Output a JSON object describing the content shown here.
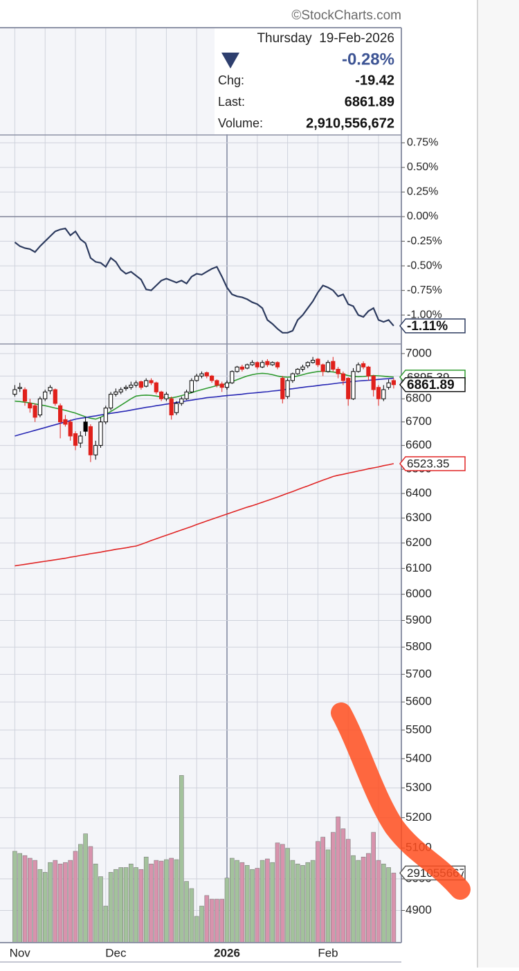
{
  "info": {
    "watermark": "©StockCharts.com",
    "date": "Thursday  19-Feb-2026",
    "change_pct": "-0.28%",
    "chg_label": "Chg:",
    "chg": "-19.42",
    "last_label": "Last:",
    "last": "6861.89",
    "volume_label": "Volume:",
    "volume": "2,910,556,672",
    "arrow_color": "#2e3f6e"
  },
  "chart_data": [
    {
      "type": "line",
      "color": "#2c3a5e",
      "ylim": [
        -1.28,
        0.83
      ],
      "grid": true,
      "yticks": [
        {
          "value": 0.75,
          "label": "0.75%"
        },
        {
          "value": 0.5,
          "label": "0.50%"
        },
        {
          "value": 0.25,
          "label": "0.25%"
        },
        {
          "value": 0,
          "label": "0.00%"
        },
        {
          "value": -0.25,
          "label": "-0.25%"
        },
        {
          "value": -0.5,
          "label": "-0.50%"
        },
        {
          "value": -0.75,
          "label": "-0.75%"
        },
        {
          "value": -1,
          "label": "-1.00%"
        }
      ],
      "values": [
        -0.26,
        -0.3,
        -0.32,
        -0.33,
        -0.36,
        -0.3,
        -0.25,
        -0.2,
        -0.15,
        -0.13,
        -0.12,
        -0.19,
        -0.15,
        -0.23,
        -0.27,
        -0.42,
        -0.46,
        -0.47,
        -0.51,
        -0.42,
        -0.46,
        -0.54,
        -0.58,
        -0.56,
        -0.6,
        -0.64,
        -0.74,
        -0.75,
        -0.7,
        -0.65,
        -0.63,
        -0.65,
        -0.67,
        -0.65,
        -0.68,
        -0.61,
        -0.58,
        -0.59,
        -0.56,
        -0.53,
        -0.51,
        -0.61,
        -0.72,
        -0.79,
        -0.81,
        -0.82,
        -0.84,
        -0.87,
        -0.89,
        -0.93,
        -1.05,
        -1.09,
        -1.14,
        -1.18,
        -1.18,
        -1.16,
        -1.05,
        -1.0,
        -0.93,
        -0.86,
        -0.77,
        -0.7,
        -0.72,
        -0.75,
        -0.81,
        -0.79,
        -0.89,
        -0.91,
        -1.0,
        -1.02,
        -0.96,
        -0.93,
        -1.05,
        -1.07,
        -1.05,
        -1.11
      ],
      "value_labels": [
        null,
        null,
        null,
        null,
        null,
        null,
        null,
        null,
        null,
        null,
        null,
        null,
        null,
        null,
        null,
        null,
        null,
        null,
        null,
        null,
        null,
        null,
        null,
        null,
        null,
        null,
        null,
        null,
        null,
        null,
        null,
        null,
        null,
        null,
        null,
        null,
        null,
        null,
        null,
        null,
        null,
        null,
        null,
        null,
        null,
        null,
        null,
        null,
        null,
        null,
        null,
        null,
        null,
        null,
        null,
        null,
        null,
        null,
        null,
        null,
        null,
        null,
        null,
        null,
        null,
        null,
        null,
        null,
        null,
        null,
        null,
        null,
        null,
        null,
        null,
        "-1.11%"
      ]
    },
    {
      "type": "candlestick",
      "log_scale": true,
      "grid": true,
      "ylim": [
        4800,
        7040
      ],
      "yticks": [
        7000,
        6900,
        6800,
        6700,
        6600,
        6500,
        6400,
        6300,
        6200,
        6100,
        6000,
        5900,
        5800,
        5700,
        5600,
        5500,
        5400,
        5300,
        5200,
        5100,
        5000,
        4900
      ],
      "up_color": "#000000",
      "down_color": "#e0201b",
      "categories": [
        null,
        "Nov",
        null,
        null,
        null,
        null,
        null,
        null,
        null,
        null,
        null,
        null,
        null,
        null,
        null,
        null,
        null,
        null,
        null,
        null,
        "Dec",
        null,
        null,
        null,
        null,
        null,
        null,
        null,
        null,
        null,
        null,
        null,
        null,
        null,
        null,
        null,
        null,
        null,
        null,
        null,
        null,
        null,
        "2026",
        null,
        null,
        null,
        null,
        null,
        null,
        null,
        null,
        null,
        null,
        null,
        null,
        null,
        null,
        null,
        null,
        null,
        null,
        null,
        "Feb",
        null,
        null,
        null,
        null,
        null,
        null,
        null,
        null,
        null,
        null,
        null,
        null,
        null
      ],
      "open": [
        6820,
        6845,
        6840,
        6780,
        6770,
        6730,
        6800,
        6835,
        6840,
        6770,
        6710,
        6700,
        6650,
        6610,
        6700,
        6680,
        6560,
        6600,
        6700,
        6760,
        6820,
        6830,
        6845,
        6850,
        6860,
        6875,
        6855,
        6880,
        6870,
        6830,
        6800,
        6800,
        6740,
        6780,
        6800,
        6830,
        6880,
        6900,
        6915,
        6900,
        6880,
        6865,
        6850,
        6870,
        6920,
        6940,
        6935,
        6950,
        6960,
        6940,
        6965,
        6950,
        6960,
        6890,
        6810,
        6880,
        6910,
        6930,
        6945,
        6960,
        6975,
        6950,
        6920,
        6965,
        6930,
        6910,
        6890,
        6800,
        6920,
        6955,
        6940,
        6900,
        6850,
        6800,
        6850,
        6880
      ],
      "high": [
        6860,
        6870,
        6850,
        6800,
        6780,
        6810,
        6840,
        6860,
        6845,
        6780,
        6730,
        6710,
        6660,
        6660,
        6720,
        6690,
        6620,
        6720,
        6770,
        6830,
        6845,
        6850,
        6860,
        6875,
        6880,
        6880,
        6890,
        6890,
        6875,
        6835,
        6830,
        6810,
        6790,
        6810,
        6840,
        6890,
        6910,
        6920,
        6920,
        6905,
        6885,
        6875,
        6880,
        6925,
        6945,
        6950,
        6955,
        6970,
        6965,
        6970,
        6975,
        6965,
        6965,
        6900,
        6890,
        6915,
        6935,
        6950,
        6965,
        6985,
        6980,
        6955,
        6970,
        6985,
        6940,
        6920,
        6895,
        6935,
        6960,
        6965,
        6945,
        6905,
        6860,
        6860,
        6885,
        6890
      ],
      "low": [
        6810,
        6830,
        6770,
        6740,
        6700,
        6720,
        6790,
        6820,
        6770,
        6630,
        6680,
        6620,
        6580,
        6590,
        6640,
        6530,
        6540,
        6590,
        6690,
        6750,
        6810,
        6820,
        6835,
        6840,
        6850,
        6840,
        6850,
        6860,
        6820,
        6790,
        6790,
        6710,
        6730,
        6770,
        6795,
        6825,
        6875,
        6890,
        6890,
        6870,
        6850,
        6830,
        6840,
        6865,
        6915,
        6920,
        6930,
        6945,
        6930,
        6935,
        6940,
        6945,
        6930,
        6780,
        6800,
        6870,
        6905,
        6920,
        6935,
        6955,
        6940,
        6900,
        6915,
        6920,
        6890,
        6860,
        6770,
        6795,
        6915,
        6930,
        6880,
        6810,
        6770,
        6790,
        6840,
        6845
      ],
      "close": [
        6840,
        6850,
        6790,
        6760,
        6720,
        6800,
        6830,
        6850,
        6780,
        6700,
        6690,
        6640,
        6600,
        6640,
        6660,
        6560,
        6600,
        6700,
        6760,
        6820,
        6830,
        6840,
        6850,
        6860,
        6870,
        6850,
        6880,
        6870,
        6830,
        6800,
        6820,
        6730,
        6780,
        6800,
        6830,
        6880,
        6900,
        6910,
        6900,
        6880,
        6860,
        6850,
        6870,
        6920,
        6940,
        6930,
        6950,
        6960,
        6940,
        6960,
        6950,
        6960,
        6940,
        6800,
        6880,
        6910,
        6930,
        6940,
        6960,
        6970,
        6950,
        6920,
        6960,
        6930,
        6910,
        6880,
        6800,
        6920,
        6950,
        6940,
        6900,
        6840,
        6800,
        6840,
        6870,
        6861.89
      ],
      "series": [
        {
          "color": "#2f9a2f",
          "values": [
            6790,
            6788,
            6785,
            6782,
            6778,
            6774,
            6770,
            6765,
            6760,
            6755,
            6750,
            6744,
            6738,
            6730,
            6722,
            6716,
            6712,
            6720,
            6732,
            6745,
            6758,
            6772,
            6786,
            6800,
            6812,
            6815,
            6816,
            6815,
            6812,
            6808,
            6805,
            6804,
            6808,
            6814,
            6820,
            6827,
            6834,
            6840,
            6846,
            6852,
            6858,
            6862,
            6866,
            6875,
            6884,
            6892,
            6900,
            6906,
            6910,
            6912,
            6910,
            6906,
            6900,
            6896,
            6895,
            6896,
            6900,
            6906,
            6912,
            6916,
            6920,
            6921,
            6920,
            6918,
            6914,
            6908,
            6902,
            6898,
            6897,
            6898,
            6900,
            6902,
            6901,
            6899,
            6897,
            6895.39
          ]
        },
        {
          "color": "#2828b4",
          "values": [
            6640,
            6646,
            6652,
            6658,
            6664,
            6670,
            6676,
            6682,
            6688,
            6694,
            6700,
            6706,
            6712,
            6716,
            6719,
            6723,
            6726,
            6730,
            6733,
            6737,
            6740,
            6744,
            6747,
            6751,
            6755,
            6759,
            6763,
            6766,
            6770,
            6773,
            6777,
            6780,
            6784,
            6787,
            6791,
            6794,
            6798,
            6801,
            6805,
            6807,
            6809,
            6812,
            6814,
            6816,
            6818,
            6820,
            6823,
            6825,
            6827,
            6829,
            6831,
            6834,
            6836,
            6839,
            6842,
            6844,
            6847,
            6850,
            6853,
            6855,
            6858,
            6861,
            6863,
            6866,
            6869,
            6871,
            6874,
            6876,
            6878,
            6880,
            6881,
            6883,
            6885,
            6887,
            6888,
            6890
          ]
        },
        {
          "color": "#e02424",
          "values": [
            6110,
            6113,
            6116,
            6119,
            6122,
            6125,
            6128,
            6131,
            6134,
            6137,
            6140,
            6144,
            6147,
            6151,
            6154,
            6158,
            6161,
            6164,
            6168,
            6171,
            6175,
            6178,
            6181,
            6185,
            6188,
            6195,
            6202,
            6210,
            6217,
            6224,
            6231,
            6238,
            6245,
            6252,
            6259,
            6266,
            6274,
            6281,
            6288,
            6295,
            6302,
            6309,
            6316,
            6323,
            6330,
            6337,
            6344,
            6350,
            6357,
            6364,
            6371,
            6378,
            6385,
            6393,
            6401,
            6408,
            6416,
            6424,
            6431,
            6439,
            6447,
            6455,
            6462,
            6470,
            6475,
            6479,
            6484,
            6488,
            6493,
            6497,
            6502,
            6506,
            6510,
            6515,
            6519,
            6523.35
          ]
        }
      ],
      "y2lim": [
        0,
        25000000000
      ],
      "volume": {
        "axis": "y2",
        "up_color": "#a3c29c",
        "down_color": "#d893ad",
        "values": [
          3820000000,
          3730000000,
          3640000000,
          3530000000,
          3440000000,
          3060000000,
          2940000000,
          3350000000,
          3440000000,
          3290000000,
          3350000000,
          3440000000,
          3820000000,
          4110000000,
          4550000000,
          4020000000,
          3290000000,
          2760000000,
          1530000000,
          2940000000,
          3060000000,
          3140000000,
          3140000000,
          3290000000,
          3140000000,
          3060000000,
          3580000000,
          3290000000,
          3440000000,
          3410000000,
          3470000000,
          3530000000,
          3470000000,
          6990000000,
          2560000000,
          2260000000,
          1100000000,
          1530000000,
          1970000000,
          1820000000,
          1820000000,
          1820000000,
          2700000000,
          3530000000,
          3440000000,
          3350000000,
          3230000000,
          3060000000,
          3110000000,
          3440000000,
          3500000000,
          3350000000,
          4170000000,
          4110000000,
          3940000000,
          3440000000,
          3290000000,
          3230000000,
          3350000000,
          3440000000,
          4230000000,
          4410000000,
          3880000000,
          4610000000,
          5260000000,
          4760000000,
          4320000000,
          3640000000,
          3440000000,
          3580000000,
          3730000000,
          4610000000,
          3440000000,
          3290000000,
          3140000000,
          2910556672
        ]
      }
    }
  ]
}
